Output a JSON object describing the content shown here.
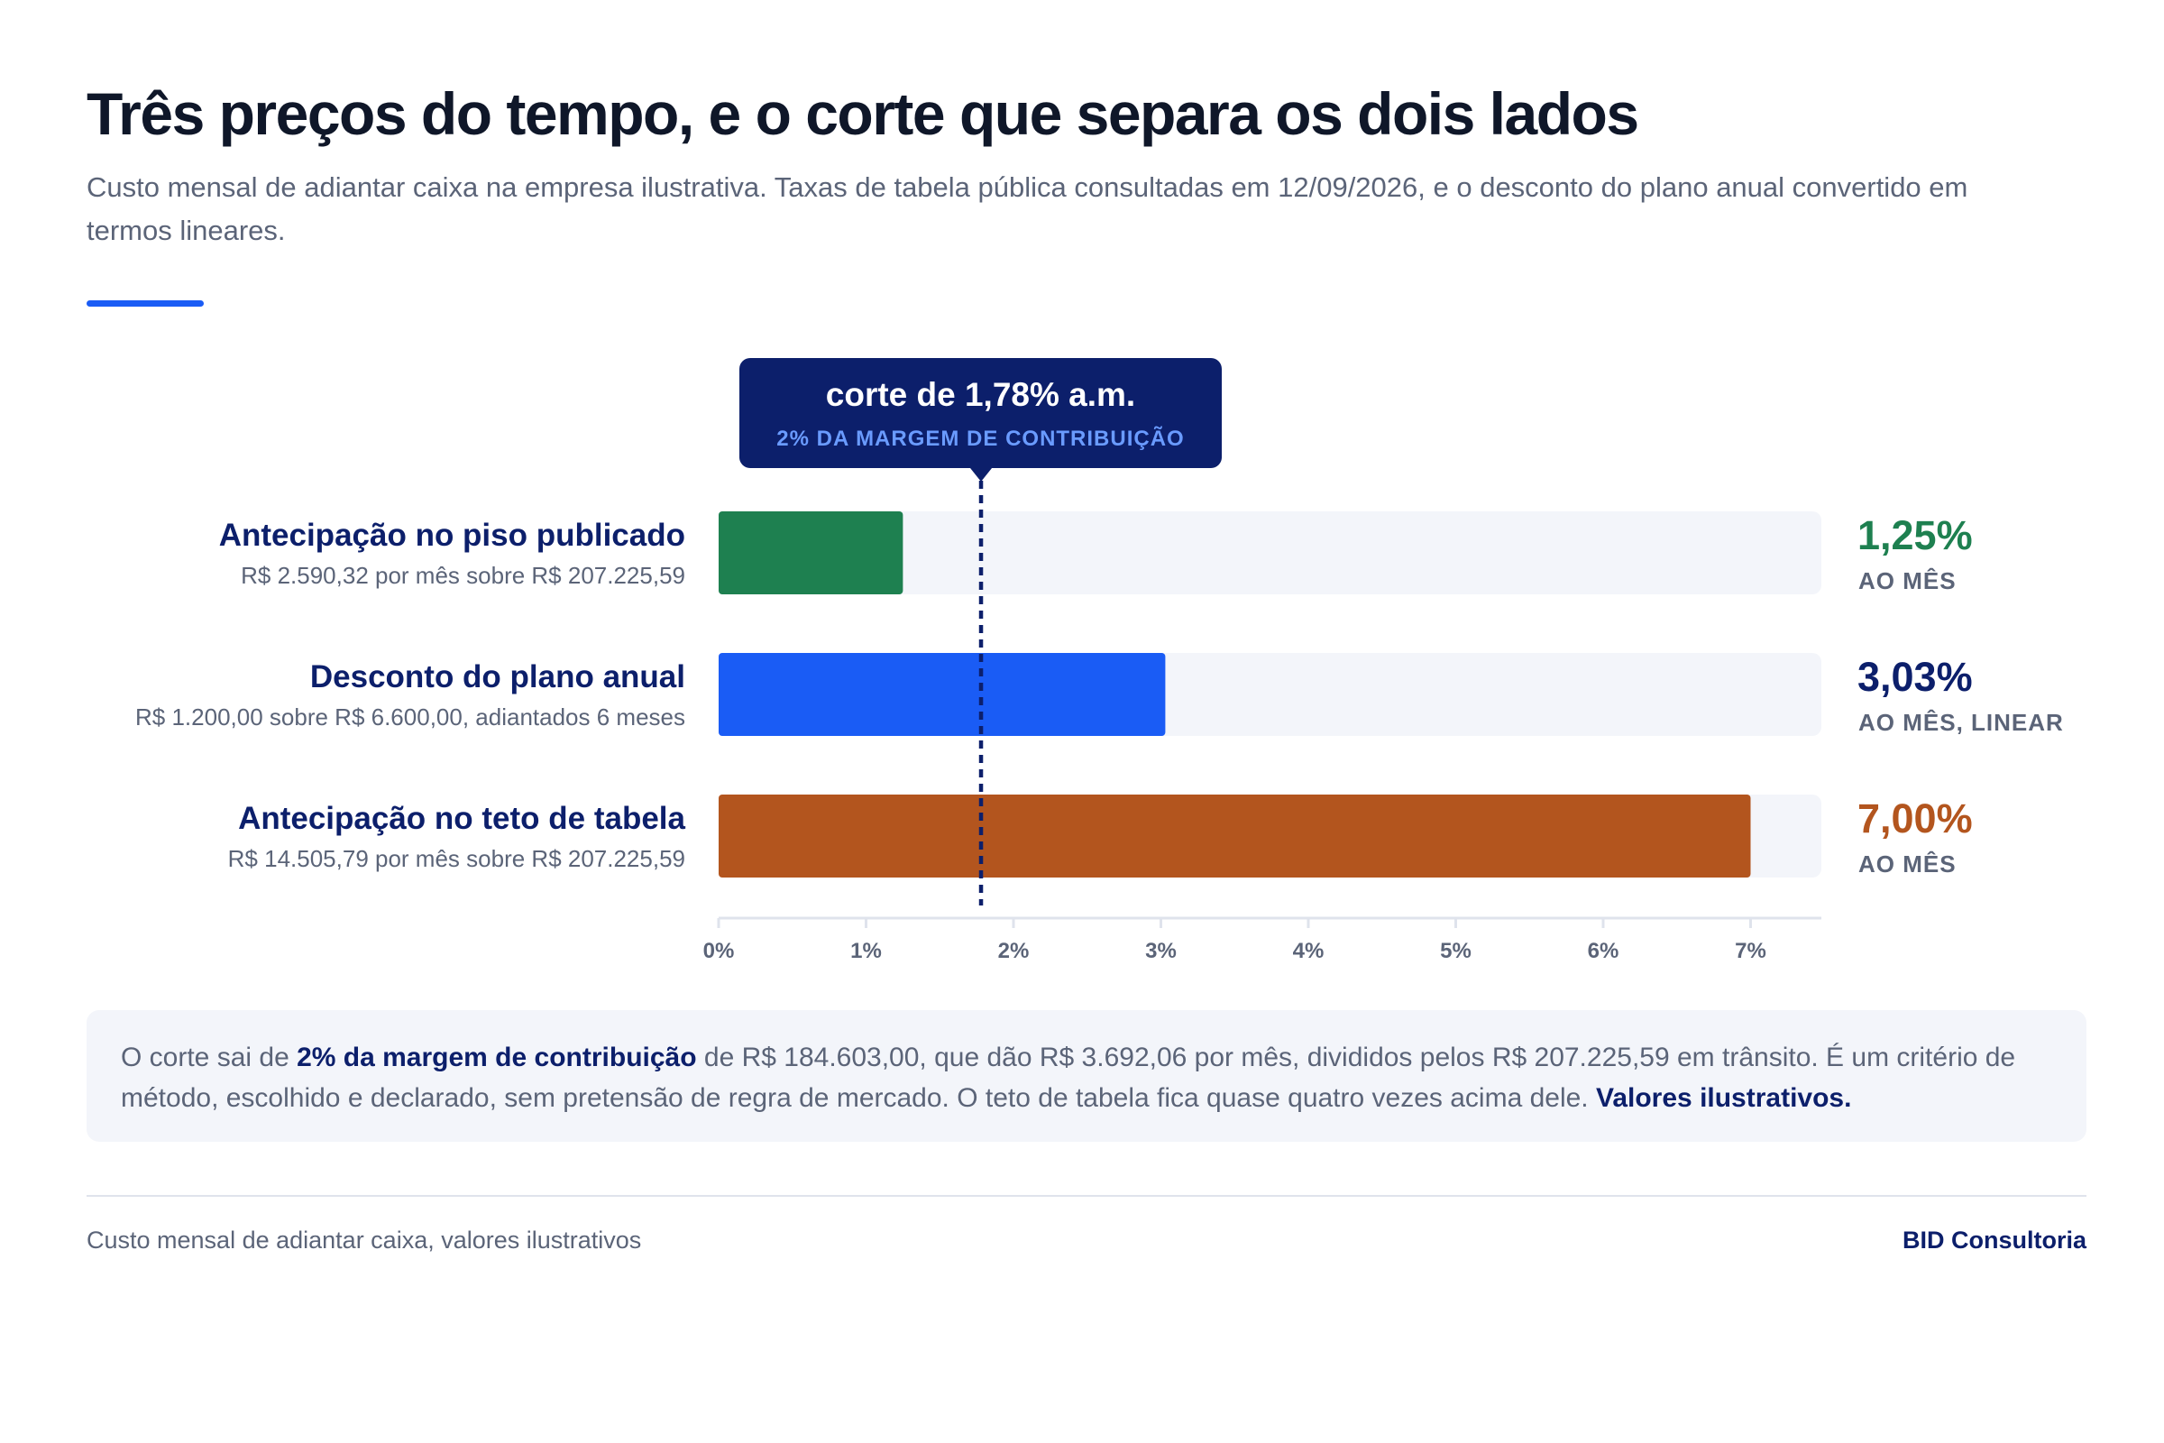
{
  "header": {
    "title": "Três preços do tempo, e o corte que separa os dois lados",
    "subtitle": "Custo mensal de adiantar caixa na empresa ilustrativa. Taxas de tabela pública consultadas em 12/09/2026, e o desconto do plano anual convertido em termos lineares."
  },
  "colors": {
    "accent": "#1a5cf5",
    "navy": "#0c1f6b",
    "green": "#1e8050",
    "blue": "#1a5cf5",
    "orange": "#b3551e",
    "track": "#f3f5fa",
    "callout_sub": "#6a9bff"
  },
  "chart_data": {
    "type": "bar",
    "orientation": "horizontal",
    "categories": [
      "Antecipação no piso publicado",
      "Desconto do plano anual",
      "Antecipação no teto de tabela"
    ],
    "values": [
      1.25,
      3.03,
      7.0
    ],
    "bars": [
      {
        "label": "Antecipação no piso publicado",
        "sublabel": "R$ 2.590,32 por mês sobre R$ 207.225,59",
        "value": 1.25,
        "value_label": "1,25%",
        "unit": "AO MÊS",
        "color": "#1e8050",
        "value_color": "#1e8050"
      },
      {
        "label": "Desconto do plano anual",
        "sublabel": "R$ 1.200,00 sobre R$ 6.600,00, adiantados 6 meses",
        "value": 3.03,
        "value_label": "3,03%",
        "unit": "AO MÊS, LINEAR",
        "color": "#1a5cf5",
        "value_color": "#0c1f6b"
      },
      {
        "label": "Antecipação no teto de tabela",
        "sublabel": "R$ 14.505,79 por mês sobre R$ 207.225,59",
        "value": 7.0,
        "value_label": "7,00%",
        "unit": "AO MÊS",
        "color": "#b3551e",
        "value_color": "#b3551e"
      }
    ],
    "xlim": [
      0,
      7.5
    ],
    "x_ticks": [
      0,
      1,
      2,
      3,
      4,
      5,
      6,
      7
    ],
    "x_tick_labels": [
      "0%",
      "1%",
      "2%",
      "3%",
      "4%",
      "5%",
      "6%",
      "7%"
    ],
    "reference_line": {
      "value": 1.78,
      "label": "corte de 1,78% a.m.",
      "sublabel": "2% DA MARGEM DE CONTRIBUIÇÃO"
    }
  },
  "note": {
    "part1": "O corte sai de ",
    "bold1": "2% da margem de contribuição",
    "part2": " de R$ 184.603,00, que dão R$ 3.692,06 por mês, divididos pelos R$ 207.225,59 em trânsito. É um critério de método, escolhido e declarado, sem pretensão de regra de mercado. O teto de tabela fica quase quatro vezes acima dele. ",
    "bold2": "Valores ilustrativos."
  },
  "footer": {
    "left": "Custo mensal de adiantar caixa, valores ilustrativos",
    "right": "BID Consultoria"
  }
}
